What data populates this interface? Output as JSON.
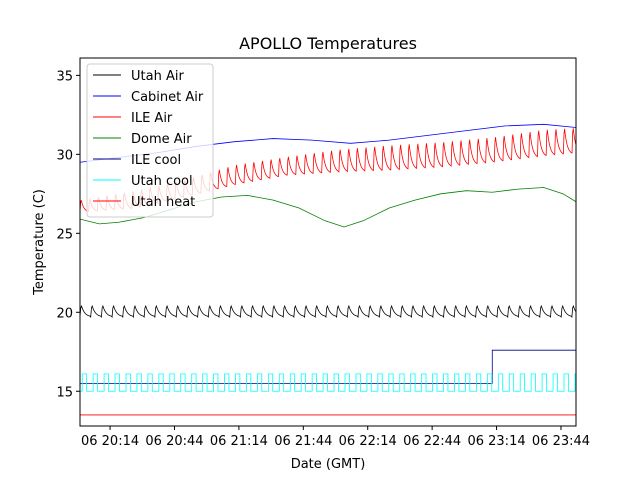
{
  "chart_data": {
    "type": "line",
    "title": "APOLLO Temperatures",
    "xlabel": "Date (GMT)",
    "ylabel": "Temperature (C)",
    "xlim": [
      20.0,
      23.85
    ],
    "ylim": [
      12.8,
      36.1
    ],
    "x_unit": "hours of day 06 (GMT)",
    "x_ticks": [
      {
        "value": 20.2333,
        "label": "06 20:14"
      },
      {
        "value": 20.7333,
        "label": "06 20:44"
      },
      {
        "value": 21.2333,
        "label": "06 21:14"
      },
      {
        "value": 21.7333,
        "label": "06 21:44"
      },
      {
        "value": 22.2333,
        "label": "06 22:14"
      },
      {
        "value": 22.7333,
        "label": "06 22:44"
      },
      {
        "value": 23.2333,
        "label": "06 23:14"
      },
      {
        "value": 23.7333,
        "label": "06 23:44"
      }
    ],
    "y_ticks": [
      {
        "value": 15,
        "label": "15"
      },
      {
        "value": 20,
        "label": "20"
      },
      {
        "value": 25,
        "label": "25"
      },
      {
        "value": 30,
        "label": "30"
      },
      {
        "value": 35,
        "label": "35"
      }
    ],
    "legend_position": "top-left",
    "series": [
      {
        "name": "Utah Air",
        "color": "#000000",
        "kind": "sawtooth",
        "period_h": 0.083,
        "low": 19.7,
        "high": 20.5,
        "x": [
          20.0,
          23.85
        ],
        "y": [
          20.1,
          20.1
        ]
      },
      {
        "name": "Cabinet Air",
        "color": "#0000ff",
        "kind": "line",
        "x": [
          20.0,
          20.3,
          20.6,
          20.9,
          21.2,
          21.5,
          21.8,
          22.1,
          22.4,
          22.7,
          23.0,
          23.3,
          23.6,
          23.85
        ],
        "y": [
          29.5,
          29.8,
          30.1,
          30.5,
          30.8,
          31.0,
          30.9,
          30.7,
          30.9,
          31.2,
          31.5,
          31.8,
          31.9,
          31.7
        ]
      },
      {
        "name": "ILE Air",
        "color": "#ff0000",
        "kind": "sawtooth",
        "period_h": 0.067,
        "x": [
          20.0,
          20.4,
          20.8,
          21.2,
          21.6,
          22.0,
          22.4,
          22.8,
          23.2,
          23.6,
          23.85
        ],
        "low": [
          26.3,
          26.5,
          27.2,
          28.0,
          28.6,
          28.8,
          28.9,
          29.1,
          29.4,
          29.8,
          30.0
        ],
        "high": [
          27.2,
          27.8,
          28.5,
          29.5,
          30.0,
          30.5,
          30.8,
          31.0,
          31.3,
          31.8,
          31.9
        ]
      },
      {
        "name": "Dome Air",
        "color": "#008000",
        "kind": "line",
        "x": [
          20.0,
          20.15,
          20.3,
          20.5,
          20.7,
          20.9,
          21.1,
          21.3,
          21.5,
          21.7,
          21.9,
          22.05,
          22.2,
          22.4,
          22.6,
          22.8,
          23.0,
          23.2,
          23.4,
          23.6,
          23.75,
          23.85
        ],
        "y": [
          25.9,
          25.6,
          25.7,
          26.0,
          26.5,
          27.0,
          27.3,
          27.4,
          27.1,
          26.6,
          25.8,
          25.4,
          25.8,
          26.6,
          27.1,
          27.5,
          27.7,
          27.6,
          27.8,
          27.9,
          27.5,
          27.0
        ]
      },
      {
        "name": "ILE cool",
        "color": "#00008b",
        "kind": "step",
        "x": [
          20.0,
          23.2,
          23.2,
          23.85
        ],
        "y": [
          15.5,
          15.5,
          17.6,
          17.6
        ]
      },
      {
        "name": "Utah cool",
        "color": "#00ffff",
        "kind": "pulses",
        "period_h": 0.085,
        "duty": 0.4,
        "low": 15.0,
        "high": 16.1,
        "x": [
          20.0,
          23.85
        ],
        "y": [
          15.0,
          16.1
        ]
      },
      {
        "name": "Utah heat",
        "color": "#ff0000",
        "kind": "line",
        "x": [
          20.0,
          23.85
        ],
        "y": [
          13.5,
          13.5
        ]
      }
    ]
  }
}
